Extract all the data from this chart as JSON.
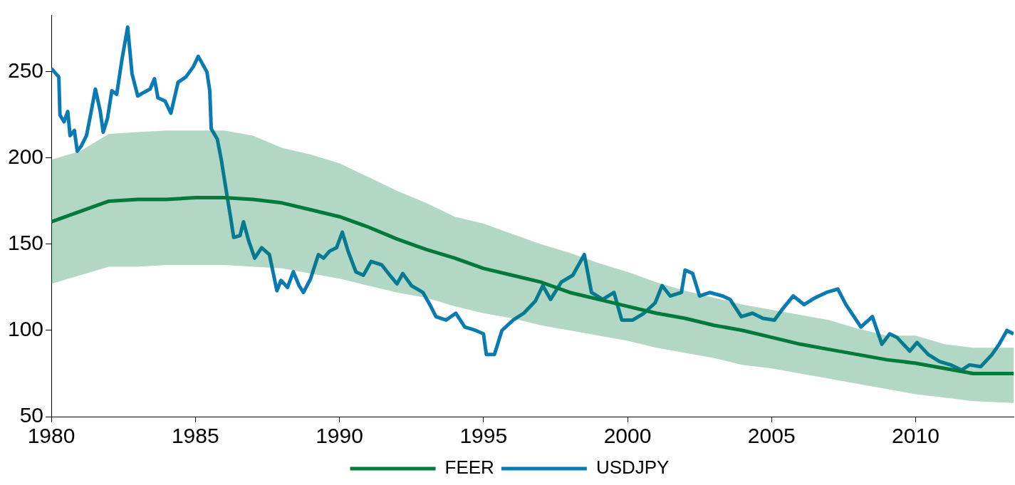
{
  "chart_data": {
    "type": "line",
    "xlim": [
      1980,
      2013.4
    ],
    "xticks": [
      1980,
      1985,
      1990,
      1995,
      2000,
      2005,
      2010
    ],
    "ylim": [
      50,
      283
    ],
    "yticks": [
      50,
      100,
      150,
      200,
      250
    ],
    "grid": false,
    "legend": "bottom",
    "series": [
      {
        "name": "FEER",
        "color": "#007a3d",
        "x": [
          1980,
          1981,
          1982,
          1983,
          1984,
          1985,
          1986,
          1987,
          1988,
          1989,
          1990,
          1991,
          1992,
          1993,
          1994,
          1995,
          1996,
          1997,
          1998,
          1999,
          2000,
          2001,
          2002,
          2003,
          2004,
          2005,
          2006,
          2007,
          2008,
          2009,
          2010,
          2011,
          2012,
          2013.4
        ],
        "values": [
          163,
          169,
          175,
          176,
          176,
          177,
          177,
          176,
          174,
          170,
          166,
          160,
          153,
          147,
          142,
          136,
          132,
          128,
          122,
          118,
          114,
          110,
          107,
          103,
          100,
          96,
          92,
          89,
          86,
          83,
          81,
          78,
          75,
          75
        ],
        "upper": [
          199,
          204,
          214,
          215,
          216,
          216,
          216,
          213,
          206,
          202,
          197,
          189,
          181,
          174,
          166,
          162,
          156,
          150,
          145,
          139,
          134,
          128,
          123,
          119,
          115,
          112,
          109,
          106,
          101,
          97,
          97,
          92,
          90,
          90
        ],
        "lower": [
          127,
          132,
          137,
          137,
          138,
          138,
          138,
          137,
          136,
          133,
          130,
          126,
          122,
          119,
          114,
          110,
          107,
          103,
          100,
          97,
          94,
          90,
          87,
          84,
          80,
          78,
          75,
          72,
          69,
          66,
          63,
          61,
          59,
          58
        ]
      },
      {
        "name": "USDJPY",
        "color": "#0a7ab5",
        "x": [
          1980,
          1980.26,
          1980.3,
          1980.44,
          1980.57,
          1980.65,
          1980.8,
          1980.9,
          1981.04,
          1981.22,
          1981.35,
          1981.53,
          1981.7,
          1981.8,
          1981.95,
          1982.1,
          1982.27,
          1982.45,
          1982.65,
          1982.8,
          1983,
          1983.2,
          1983.43,
          1983.58,
          1983.7,
          1983.95,
          1984.15,
          1984.4,
          1984.67,
          1984.93,
          1985.1,
          1985.4,
          1985.5,
          1985.55,
          1985.76,
          1985.9,
          1986.1,
          1986.2,
          1986.33,
          1986.55,
          1986.67,
          1986.85,
          1987.06,
          1987.3,
          1987.57,
          1987.83,
          1987.97,
          1988.2,
          1988.4,
          1988.6,
          1988.75,
          1989,
          1989.27,
          1989.45,
          1989.66,
          1989.9,
          1990.1,
          1990.3,
          1990.57,
          1990.83,
          1991.1,
          1991.47,
          1991.8,
          1992,
          1992.2,
          1992.5,
          1992.9,
          1993.17,
          1993.35,
          1993.7,
          1994.04,
          1994.35,
          1994.73,
          1995,
          1995.1,
          1995.38,
          1995.64,
          1996.03,
          1996.4,
          1996.8,
          1997.06,
          1997.33,
          1997.7,
          1998.1,
          1998.5,
          1998.75,
          1999.14,
          1999.53,
          1999.8,
          2000.18,
          2000.57,
          2000.96,
          2001.2,
          2001.48,
          2001.87,
          2002,
          2002.26,
          2002.5,
          2002.86,
          2003.3,
          2003.56,
          2003.95,
          2004.34,
          2004.7,
          2005.1,
          2005.36,
          2005.75,
          2006.13,
          2006.52,
          2006.9,
          2007.3,
          2007.58,
          2008.1,
          2008.5,
          2008.83,
          2009.1,
          2009.35,
          2009.8,
          2010.05,
          2010.44,
          2010.83,
          2011.22,
          2011.6,
          2011.87,
          2012.26,
          2012.65,
          2012.9,
          2013.17,
          2013.4
        ],
        "values": [
          252,
          247,
          225,
          221,
          227,
          213,
          216,
          204,
          207,
          213,
          224,
          240,
          227,
          215,
          223,
          239,
          237,
          257,
          276,
          249,
          236,
          238,
          240,
          246,
          235,
          233,
          226,
          244,
          247,
          253,
          259,
          250,
          239,
          217,
          211,
          199,
          178,
          168,
          154,
          155,
          163,
          152,
          142,
          148,
          144,
          123,
          129,
          125,
          134,
          126,
          122,
          130,
          144,
          142,
          146,
          148,
          157,
          146,
          134,
          132,
          140,
          138,
          131,
          127,
          133,
          126,
          122,
          114,
          108,
          106,
          110,
          102,
          100,
          98,
          86,
          86,
          100,
          106,
          110,
          117,
          126,
          118,
          128,
          132,
          144,
          122,
          118,
          122,
          106,
          106,
          110,
          116,
          126,
          120,
          122,
          135,
          133,
          120,
          122,
          120,
          118,
          108,
          110,
          107,
          106,
          112,
          120,
          115,
          119,
          122,
          124,
          115,
          102,
          108,
          92,
          98,
          96,
          88,
          93,
          86,
          82,
          80,
          77,
          80,
          79,
          86,
          92,
          100,
          98
        ]
      }
    ]
  }
}
